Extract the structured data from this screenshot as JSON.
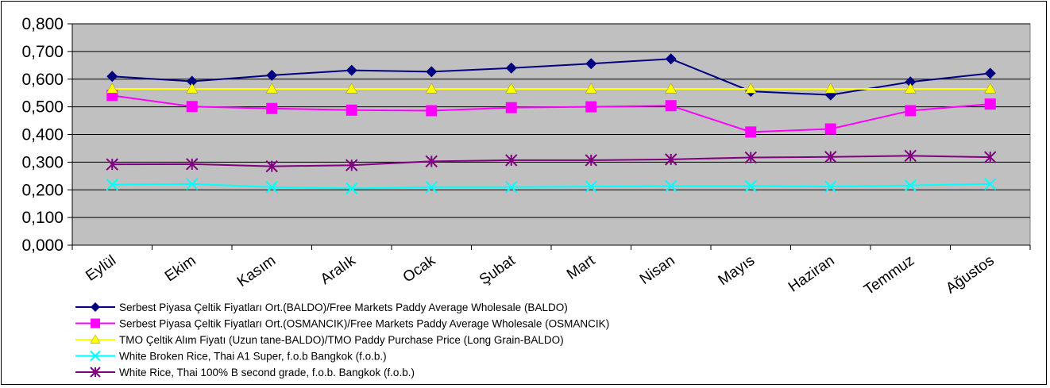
{
  "chart_data": {
    "type": "line",
    "title": "",
    "xlabel": "",
    "ylabel": "",
    "ylim": [
      0,
      0.8
    ],
    "ytick_labels": [
      "0,000",
      "0,100",
      "0,200",
      "0,300",
      "0,400",
      "0,500",
      "0,600",
      "0,700",
      "0,800"
    ],
    "categories": [
      "Eylül",
      "Ekim",
      "Kasım",
      "Aralık",
      "Ocak",
      "Şubat",
      "Mart",
      "Nisan",
      "Mayıs",
      "Haziran",
      "Temmuz",
      "Ağustos"
    ],
    "grid": true,
    "legend_position": "bottom-left",
    "plot_background": "#c0c0c0",
    "series": [
      {
        "name": "Serbest Piyasa Çeltik Fiyatları Ort.(BALDO)/Free Markets Paddy Average Wholesale (BALDO)",
        "color": "#000080",
        "marker": "diamond",
        "values": [
          0.61,
          0.592,
          0.614,
          0.632,
          0.627,
          0.64,
          0.656,
          0.673,
          0.556,
          0.543,
          0.59,
          0.621
        ]
      },
      {
        "name": "Serbest Piyasa Çeltik Fiyatları Ort.(OSMANCIK)/Free Markets Paddy Average Wholesale (OSMANCIK)",
        "color": "#ff00ff",
        "marker": "square",
        "values": [
          0.541,
          0.501,
          0.494,
          0.488,
          0.486,
          0.497,
          0.5,
          0.504,
          0.409,
          0.42,
          0.486,
          0.51
        ]
      },
      {
        "name": "TMO Çeltik Alım Fiyatı (Uzun tane-BALDO)/TMO Paddy Purchase Price (Long Grain-BALDO)",
        "color": "#ffff00",
        "marker": "triangle",
        "values": [
          0.565,
          0.565,
          0.565,
          0.565,
          0.565,
          0.565,
          0.565,
          0.565,
          0.565,
          0.565,
          0.565,
          0.565
        ]
      },
      {
        "name": "White Broken Rice, Thai A1 Super, f.o.b Bangkok (f.o.b.)",
        "color": "#00ffff",
        "marker": "x",
        "values": [
          0.219,
          0.221,
          0.21,
          0.205,
          0.21,
          0.21,
          0.212,
          0.214,
          0.214,
          0.212,
          0.216,
          0.221
        ]
      },
      {
        "name": "White Rice, Thai 100% B second grade, f.o.b. Bangkok (f.o.b.)",
        "color": "#800080",
        "marker": "asterisk",
        "values": [
          0.292,
          0.293,
          0.285,
          0.289,
          0.303,
          0.307,
          0.307,
          0.31,
          0.317,
          0.319,
          0.323,
          0.318
        ]
      }
    ]
  }
}
